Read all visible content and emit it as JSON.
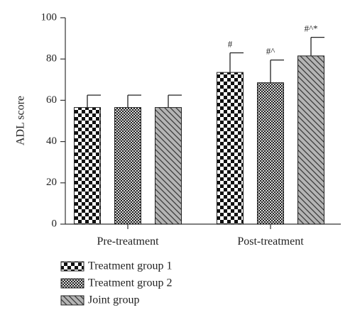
{
  "chart_data": {
    "type": "bar",
    "categories": [
      "Pre-treatment",
      "Post-treatment"
    ],
    "ylabel": "ADL score",
    "xlabel": "",
    "ylim": [
      0,
      100
    ],
    "yticks": [
      0,
      20,
      40,
      60,
      80,
      100
    ],
    "legend_position": "bottom-left",
    "grid": false,
    "series": [
      {
        "name": "Treatment group 1",
        "pattern": "checkerboard",
        "values": [
          56.5,
          73.5
        ],
        "errors": [
          6.0,
          9.5
        ],
        "annotations": [
          "",
          "#"
        ]
      },
      {
        "name": "Treatment group 2",
        "pattern": "fine-checkerboard",
        "values": [
          56.5,
          68.5
        ],
        "errors": [
          6.0,
          11.0
        ],
        "annotations": [
          "",
          "#^"
        ]
      },
      {
        "name": "Joint group",
        "pattern": "diagonal-hatch",
        "values": [
          56.5,
          81.5
        ],
        "errors": [
          6.0,
          9.0
        ],
        "annotations": [
          "",
          "#^*"
        ]
      }
    ]
  }
}
